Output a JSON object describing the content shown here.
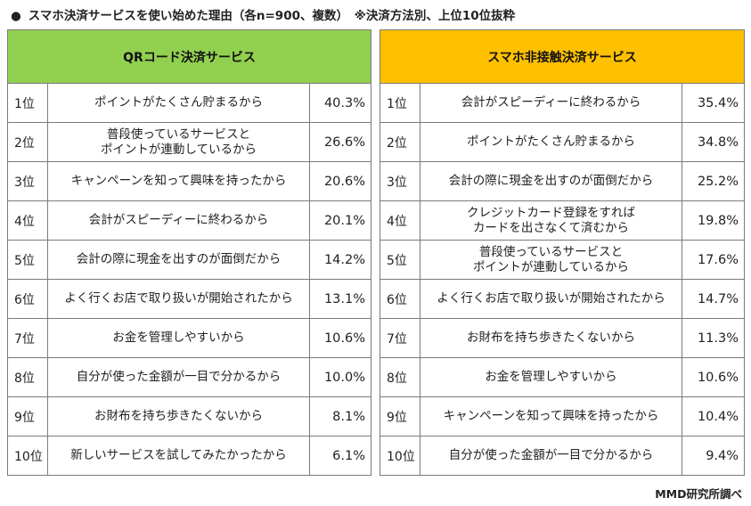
{
  "title": {
    "bullet": "●",
    "text": "スマホ決済サービスを使い始めた理由（各n=900、複数）　※決済方法別、上位10位抜粋"
  },
  "colors": {
    "qr_header": "#92d050",
    "contactless_header": "#ffc000"
  },
  "tables": [
    {
      "header": "QRコード決済サービス",
      "rows": [
        {
          "rank": "1位",
          "reason": "ポイントがたくさん貯まるから",
          "pct": "40.3%"
        },
        {
          "rank": "2位",
          "reason": "普段使っているサービスと\nポイントが連動しているから",
          "pct": "26.6%"
        },
        {
          "rank": "3位",
          "reason": "キャンペーンを知って興味を持ったから",
          "pct": "20.6%"
        },
        {
          "rank": "4位",
          "reason": "会計がスピーディーに終わるから",
          "pct": "20.1%"
        },
        {
          "rank": "5位",
          "reason": "会計の際に現金を出すのが面倒だから",
          "pct": "14.2%"
        },
        {
          "rank": "6位",
          "reason": "よく行くお店で取り扱いが開始されたから",
          "pct": "13.1%"
        },
        {
          "rank": "7位",
          "reason": "お金を管理しやすいから",
          "pct": "10.6%"
        },
        {
          "rank": "8位",
          "reason": "自分が使った金額が一目で分かるから",
          "pct": "10.0%"
        },
        {
          "rank": "9位",
          "reason": "お財布を持ち歩きたくないから",
          "pct": "8.1%"
        },
        {
          "rank": "10位",
          "reason": "新しいサービスを試してみたかったから",
          "pct": "6.1%"
        }
      ]
    },
    {
      "header": "スマホ非接触決済サービス",
      "rows": [
        {
          "rank": "1位",
          "reason": "会計がスピーディーに終わるから",
          "pct": "35.4%"
        },
        {
          "rank": "2位",
          "reason": "ポイントがたくさん貯まるから",
          "pct": "34.8%"
        },
        {
          "rank": "3位",
          "reason": "会計の際に現金を出すのが面倒だから",
          "pct": "25.2%"
        },
        {
          "rank": "4位",
          "reason": "クレジットカード登録をすれば\nカードを出さなくて済むから",
          "pct": "19.8%"
        },
        {
          "rank": "5位",
          "reason": "普段使っているサービスと\nポイントが連動しているから",
          "pct": "17.6%"
        },
        {
          "rank": "6位",
          "reason": "よく行くお店で取り扱いが開始されたから",
          "pct": "14.7%"
        },
        {
          "rank": "7位",
          "reason": "お財布を持ち歩きたくないから",
          "pct": "11.3%"
        },
        {
          "rank": "8位",
          "reason": "お金を管理しやすいから",
          "pct": "10.6%"
        },
        {
          "rank": "9位",
          "reason": "キャンペーンを知って興味を持ったから",
          "pct": "10.4%"
        },
        {
          "rank": "10位",
          "reason": "自分が使った金額が一目で分かるから",
          "pct": "9.4%"
        }
      ]
    }
  ],
  "source": "MMD研究所調べ"
}
